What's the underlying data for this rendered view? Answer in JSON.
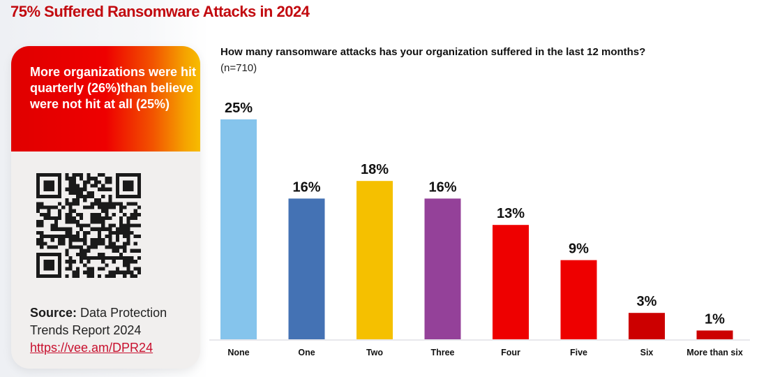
{
  "page": {
    "title": "75% Suffered Ransomware Attacks in 2024"
  },
  "card": {
    "headline": "More organizations were hit quarterly (26%)than believe were not hit at all (25%)",
    "qr_icon": "qr-code-icon",
    "source_label": "Source:",
    "source_text": "Data Protection Trends Report 2024",
    "source_link": "https://vee.am/DPR24"
  },
  "chart_data": {
    "type": "bar",
    "title": "How many ransomware attacks has your organization suffered in the last 12 months?",
    "subtitle": "(n=710)",
    "xlabel": "",
    "ylabel": "",
    "categories": [
      "None",
      "One",
      "Two",
      "Three",
      "Four",
      "Five",
      "Six",
      "More than six"
    ],
    "values": [
      25,
      16,
      18,
      16,
      13,
      9,
      3,
      1
    ],
    "value_labels": [
      "25%",
      "16%",
      "18%",
      "16%",
      "13%",
      "9%",
      "3%",
      "1%"
    ],
    "colors": [
      "#85c4ec",
      "#4472b4",
      "#f5c000",
      "#944199",
      "#ee0000",
      "#ee0000",
      "#cc0000",
      "#cc0000"
    ],
    "ylim": [
      0,
      25
    ],
    "grid": false,
    "legend": "none"
  }
}
